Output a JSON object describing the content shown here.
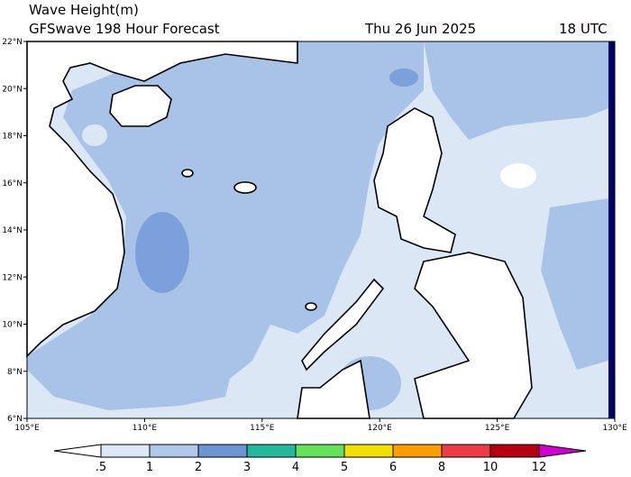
{
  "header": {
    "title": "Wave Height(m)",
    "subtitle": "GFSwave 198 Hour Forecast",
    "date": "Thu 26 Jun 2025",
    "time": "18 UTC"
  },
  "map": {
    "lat_labels": [
      "22°N",
      "20°N",
      "18°N",
      "16°N",
      "14°N",
      "12°N",
      "10°N",
      "8°N",
      "6°N"
    ],
    "lon_labels": [
      "105°E",
      "110°E",
      "115°E",
      "120°E",
      "125°E",
      "130°E"
    ]
  },
  "colorbar": {
    "labels": [
      ".5",
      "1",
      "2",
      "3",
      "4",
      "5",
      "6",
      "8",
      "10",
      "12"
    ],
    "colors": [
      "#ffffff",
      "#dde8f6",
      "#b0c8ea",
      "#6d95d6",
      "#26b89a",
      "#64e25a",
      "#f2e100",
      "#ff9c00",
      "#ee3c46",
      "#b40012",
      "#d000d0"
    ]
  }
}
